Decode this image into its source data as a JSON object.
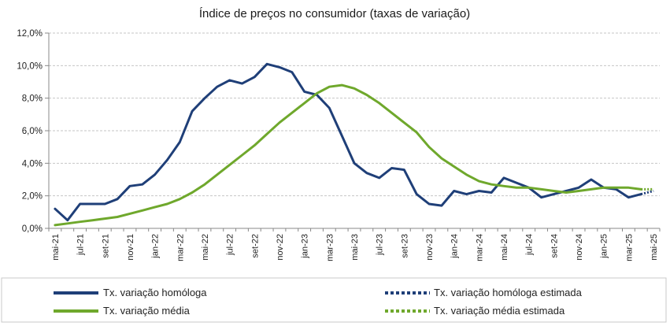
{
  "chart_data": {
    "type": "line",
    "title": "Índice de preços no consumidor  (taxas  de variação)",
    "ylim": [
      0,
      12
    ],
    "y_ticks": [
      "0,0%",
      "2,0%",
      "4,0%",
      "6,0%",
      "8,0%",
      "10,0%",
      "12,0%"
    ],
    "x_tick_labels": [
      "mai-21",
      "jul-21",
      "set-21",
      "nov-21",
      "jan-22",
      "mar-22",
      "mai-22",
      "jul-22",
      "set-22",
      "nov-22",
      "jan-23",
      "mar-23",
      "mai-23",
      "jul-23",
      "set-23",
      "nov-23",
      "jan-24",
      "mar-24",
      "mai-24",
      "jul-24",
      "set-24",
      "nov-24",
      "jan-25",
      "mar-25",
      "mai-25"
    ],
    "months": [
      "mai-21",
      "jun-21",
      "jul-21",
      "ago-21",
      "set-21",
      "out-21",
      "nov-21",
      "dez-21",
      "jan-22",
      "fev-22",
      "mar-22",
      "abr-22",
      "mai-22",
      "jun-22",
      "jul-22",
      "ago-22",
      "set-22",
      "out-22",
      "nov-22",
      "dez-22",
      "jan-23",
      "fev-23",
      "mar-23",
      "abr-23",
      "mai-23",
      "jun-23",
      "jul-23",
      "ago-23",
      "set-23",
      "out-23",
      "nov-23",
      "dez-23",
      "jan-24",
      "fev-24",
      "mar-24",
      "abr-24",
      "mai-24",
      "jun-24",
      "jul-24",
      "ago-24",
      "set-24",
      "out-24",
      "nov-24",
      "dez-24",
      "jan-25",
      "fev-25",
      "mar-25",
      "abr-25",
      "mai-25"
    ],
    "series": [
      {
        "name": "Tx. variação homóloga",
        "color": "#1f3f78",
        "style": "solid",
        "values": [
          1.2,
          0.5,
          1.5,
          1.5,
          1.5,
          1.8,
          2.6,
          2.7,
          3.3,
          4.2,
          5.3,
          7.2,
          8.0,
          8.7,
          9.1,
          8.9,
          9.3,
          10.1,
          9.9,
          9.6,
          8.4,
          8.2,
          7.4,
          5.7,
          4.0,
          3.4,
          3.1,
          3.7,
          3.6,
          2.1,
          1.5,
          1.4,
          2.3,
          2.1,
          2.3,
          2.2,
          3.1,
          2.8,
          2.5,
          1.9,
          2.1,
          2.3,
          2.5,
          3.0,
          2.5,
          2.4,
          1.9,
          2.1,
          null
        ]
      },
      {
        "name": "Tx. variação homóloga estimada",
        "color": "#1f3f78",
        "style": "dotted",
        "values": [
          null,
          null,
          null,
          null,
          null,
          null,
          null,
          null,
          null,
          null,
          null,
          null,
          null,
          null,
          null,
          null,
          null,
          null,
          null,
          null,
          null,
          null,
          null,
          null,
          null,
          null,
          null,
          null,
          null,
          null,
          null,
          null,
          null,
          null,
          null,
          null,
          null,
          null,
          null,
          null,
          null,
          null,
          null,
          null,
          null,
          null,
          null,
          2.1,
          2.3
        ]
      },
      {
        "name": "Tx. variação média",
        "color": "#6fa82c",
        "style": "solid",
        "values": [
          0.2,
          0.3,
          0.4,
          0.5,
          0.6,
          0.7,
          0.9,
          1.1,
          1.3,
          1.5,
          1.8,
          2.2,
          2.7,
          3.3,
          3.9,
          4.5,
          5.1,
          5.8,
          6.5,
          7.1,
          7.7,
          8.3,
          8.7,
          8.8,
          8.6,
          8.2,
          7.7,
          7.1,
          6.5,
          5.9,
          5.0,
          4.3,
          3.8,
          3.3,
          2.9,
          2.7,
          2.6,
          2.5,
          2.5,
          2.4,
          2.3,
          2.2,
          2.3,
          2.4,
          2.5,
          2.5,
          2.5,
          2.4,
          null
        ]
      },
      {
        "name": "Tx. variação média  estimada",
        "color": "#6fa82c",
        "style": "dotted",
        "values": [
          null,
          null,
          null,
          null,
          null,
          null,
          null,
          null,
          null,
          null,
          null,
          null,
          null,
          null,
          null,
          null,
          null,
          null,
          null,
          null,
          null,
          null,
          null,
          null,
          null,
          null,
          null,
          null,
          null,
          null,
          null,
          null,
          null,
          null,
          null,
          null,
          null,
          null,
          null,
          null,
          null,
          null,
          null,
          null,
          null,
          null,
          null,
          2.4,
          2.4
        ]
      }
    ],
    "legend": "bottom"
  }
}
